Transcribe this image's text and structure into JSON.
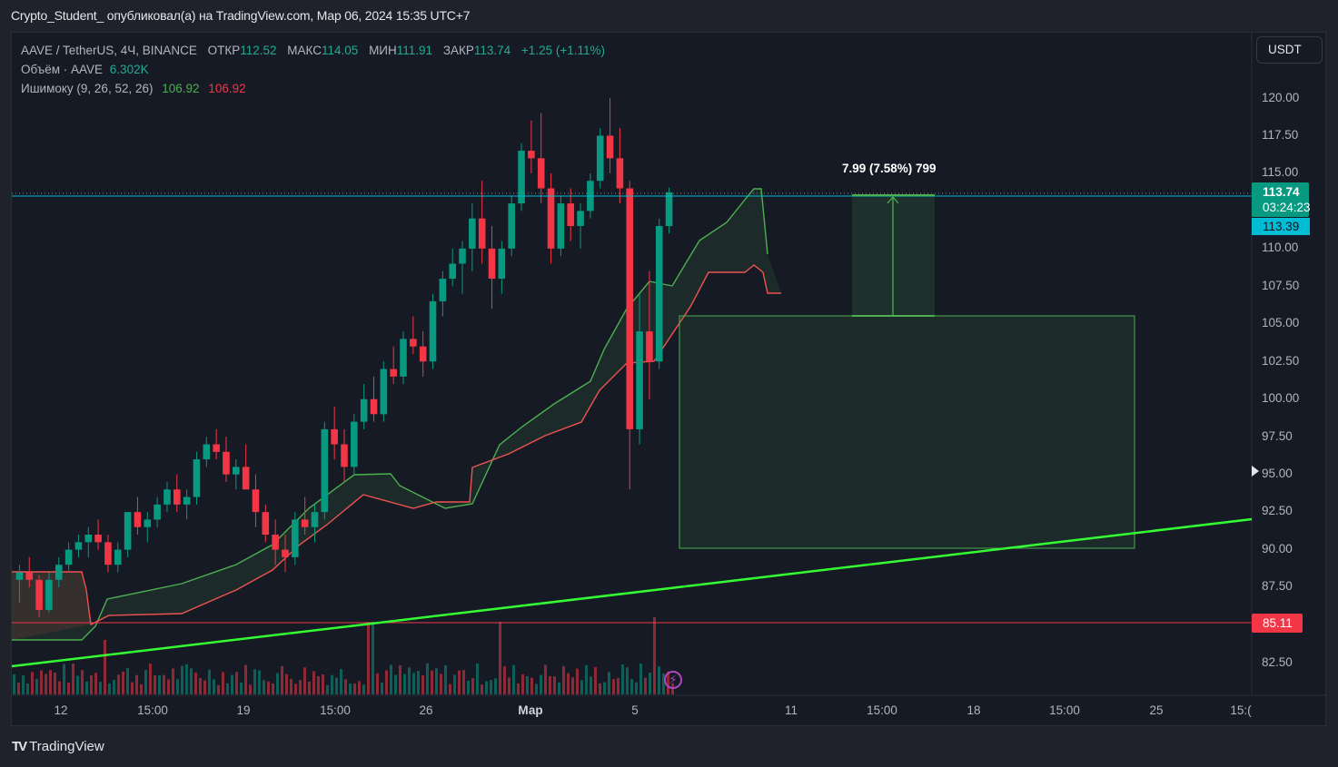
{
  "header": {
    "publisher_line": "Crypto_Student_ опубликовал(а) на TradingView.com, Мар 06, 2024 15:35 UTC+7"
  },
  "legend": {
    "symbol": "AAVE / TetherUS, 4Ч, BINANCE",
    "open_label": "ОТКР",
    "open": "112.52",
    "high_label": "МАКС",
    "high": "114.05",
    "low_label": "МИН",
    "low": "111.91",
    "close_label": "ЗАКР",
    "close": "113.74",
    "change": "+1.25 (+1.11%)",
    "volume_label": "Объём · AAVE",
    "volume": "6.302K",
    "ichimoku_label": "Ишимоку (9, 26, 52, 26)",
    "ichimoku_a": "106.92",
    "ichimoku_b": "106.92"
  },
  "currency_button": "USDT",
  "price_scale": {
    "ticks": [
      "120.00",
      "117.50",
      "115.00",
      "110.00",
      "107.50",
      "105.00",
      "102.50",
      "100.00",
      "97.50",
      "95.00",
      "92.50",
      "90.00",
      "87.50",
      "82.50"
    ],
    "current_price": "113.74",
    "countdown": "03:24:23",
    "prev_close": "113.39",
    "horizontal_level": "85.11"
  },
  "time_scale": {
    "ticks": [
      "12",
      "15:00",
      "19",
      "15:00",
      "26",
      "Мар",
      "5",
      "11",
      "15:00",
      "18",
      "15:00",
      "25",
      "15:("
    ]
  },
  "measure_tool": {
    "label": "7.99 (7.58%) 799"
  },
  "footer": {
    "brand": "TradingView",
    "logo": "TV"
  },
  "colors": {
    "up": "#089981",
    "down": "#f23645",
    "span_a": "#4caf50",
    "span_b": "#ef5350",
    "trendline": "#33ff33",
    "last_price_line": "#00bcd4",
    "zone": "#4caf50",
    "background": "#161a25"
  },
  "chart_data": {
    "type": "candlestick",
    "title": "AAVE / TetherUS, 4Ч, BINANCE",
    "xlabel": "",
    "ylabel": "USDT",
    "ylim": [
      81.5,
      121.5
    ],
    "x_range_note": "Feb 10 – Mar 6 2024, 4h candles",
    "ohlc_approx": [
      [
        88.0,
        89.0,
        86.5,
        88.5
      ],
      [
        88.5,
        89.5,
        87.5,
        88.0
      ],
      [
        88.0,
        88.3,
        85.5,
        86.0
      ],
      [
        86.0,
        88.5,
        85.8,
        88.0
      ],
      [
        88.0,
        89.5,
        87.5,
        89.0
      ],
      [
        89.0,
        90.5,
        88.5,
        90.0
      ],
      [
        90.0,
        91.0,
        89.5,
        90.5
      ],
      [
        90.5,
        91.5,
        89.5,
        91.0
      ],
      [
        91.0,
        92.0,
        90.0,
        90.5
      ],
      [
        90.5,
        91.0,
        88.5,
        89.0
      ],
      [
        89.0,
        90.5,
        88.5,
        90.0
      ],
      [
        90.0,
        92.5,
        89.5,
        92.5
      ],
      [
        92.5,
        93.5,
        91.0,
        91.5
      ],
      [
        91.5,
        92.5,
        90.5,
        92.0
      ],
      [
        92.0,
        93.5,
        91.5,
        93.0
      ],
      [
        93.0,
        94.5,
        92.5,
        94.0
      ],
      [
        94.0,
        95.0,
        92.5,
        93.0
      ],
      [
        93.0,
        94.0,
        92.0,
        93.5
      ],
      [
        93.5,
        96.5,
        93.0,
        96.0
      ],
      [
        96.0,
        97.5,
        95.5,
        97.0
      ],
      [
        97.0,
        98.0,
        96.0,
        96.5
      ],
      [
        96.5,
        97.5,
        94.5,
        95.0
      ],
      [
        95.0,
        96.0,
        94.0,
        95.5
      ],
      [
        95.5,
        97.0,
        94.5,
        94.0
      ],
      [
        94.0,
        95.0,
        91.5,
        92.5
      ],
      [
        92.5,
        93.0,
        90.5,
        91.0
      ],
      [
        91.0,
        92.0,
        89.0,
        90.0
      ],
      [
        90.0,
        91.0,
        88.5,
        89.5
      ],
      [
        89.5,
        92.5,
        89.0,
        92.0
      ],
      [
        92.0,
        93.5,
        91.0,
        91.5
      ],
      [
        91.5,
        93.0,
        90.5,
        92.5
      ],
      [
        92.5,
        98.5,
        92.0,
        98.0
      ],
      [
        98.0,
        99.5,
        96.0,
        97.0
      ],
      [
        97.0,
        98.0,
        94.5,
        95.5
      ],
      [
        95.5,
        99.0,
        95.0,
        98.5
      ],
      [
        98.5,
        101.0,
        98.0,
        100.0
      ],
      [
        100.0,
        101.5,
        98.5,
        99.0
      ],
      [
        99.0,
        102.5,
        98.5,
        102.0
      ],
      [
        102.0,
        103.5,
        101.0,
        101.5
      ],
      [
        101.5,
        104.5,
        101.0,
        104.0
      ],
      [
        104.0,
        105.5,
        103.0,
        103.5
      ],
      [
        103.5,
        104.5,
        101.5,
        102.5
      ],
      [
        102.5,
        107.0,
        102.0,
        106.5
      ],
      [
        106.5,
        108.5,
        105.5,
        108.0
      ],
      [
        108.0,
        110.0,
        107.5,
        109.0
      ],
      [
        109.0,
        110.5,
        107.0,
        110.0
      ],
      [
        110.0,
        113.0,
        108.5,
        112.0
      ],
      [
        112.0,
        114.5,
        109.0,
        110.0
      ],
      [
        110.0,
        111.5,
        106.0,
        108.0
      ],
      [
        108.0,
        110.5,
        107.0,
        110.0
      ],
      [
        110.0,
        113.5,
        109.5,
        113.0
      ],
      [
        113.0,
        117.0,
        112.5,
        116.5
      ],
      [
        116.5,
        118.5,
        115.0,
        116.0
      ],
      [
        116.0,
        119.0,
        113.0,
        114.0
      ],
      [
        114.0,
        115.0,
        109.0,
        110.0
      ],
      [
        110.0,
        113.5,
        109.5,
        113.0
      ],
      [
        113.0,
        114.0,
        110.5,
        111.5
      ],
      [
        111.5,
        113.0,
        110.0,
        112.5
      ],
      [
        112.5,
        115.0,
        112.0,
        114.5
      ],
      [
        114.5,
        118.0,
        114.0,
        117.5
      ],
      [
        117.5,
        120.0,
        115.0,
        116.0
      ],
      [
        116.0,
        118.0,
        113.0,
        114.0
      ],
      [
        114.0,
        114.5,
        94.0,
        98.0
      ],
      [
        98.0,
        107.0,
        97.0,
        104.5
      ],
      [
        104.5,
        108.5,
        100.0,
        102.5
      ],
      [
        102.5,
        112.0,
        102.0,
        111.5
      ],
      [
        111.5,
        114.05,
        111.0,
        113.74
      ]
    ],
    "ichimoku": {
      "params": "9, 26, 52, 26",
      "span_a_last": 106.92,
      "span_b_last": 106.92
    },
    "annotations": [
      {
        "type": "horizontal_line",
        "price": 85.11,
        "color": "#f23645"
      },
      {
        "type": "trendline",
        "from": [
          0,
          82.2
        ],
        "to": [
          1378,
          92.1
        ],
        "color": "#33ff33"
      },
      {
        "type": "rectangle",
        "price_top": 105.5,
        "price_bottom": 90.0,
        "color": "#4caf50"
      },
      {
        "type": "price_range",
        "from": 105.5,
        "to": 113.5,
        "label": "7.99 (7.58%) 799"
      }
    ]
  }
}
